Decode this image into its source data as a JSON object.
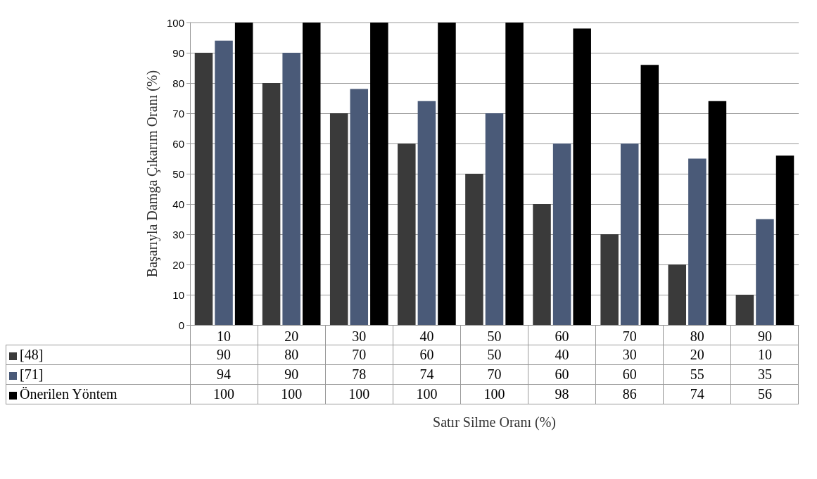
{
  "chart_data": {
    "type": "bar",
    "xlabel": "Satır Silme Oranı (%)",
    "ylabel": "Başarıyla Damga Çıkarım Oranı (%)",
    "categories": [
      "10",
      "20",
      "30",
      "40",
      "50",
      "60",
      "70",
      "80",
      "90"
    ],
    "series": [
      {
        "name": "[48]",
        "color": "#3a3a3a",
        "values": [
          90,
          80,
          70,
          60,
          50,
          40,
          30,
          20,
          10
        ]
      },
      {
        "name": "[71]",
        "color": "#4a5a78",
        "values": [
          94,
          90,
          78,
          74,
          70,
          60,
          60,
          55,
          35
        ]
      },
      {
        "name": "Önerilen Yöntem",
        "color": "#000000",
        "values": [
          100,
          100,
          100,
          100,
          100,
          98,
          86,
          74,
          56
        ]
      }
    ],
    "ylim": [
      0,
      100
    ],
    "yticks": [
      0,
      10,
      20,
      30,
      40,
      50,
      60,
      70,
      80,
      90,
      100
    ],
    "grid": "y",
    "legend": "bottom",
    "data_labels": true
  }
}
